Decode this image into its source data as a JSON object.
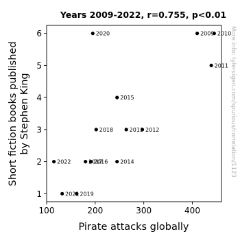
{
  "chart_data": {
    "type": "scatter",
    "title": "Years 2009-2022, r=0.755, p<0.01",
    "xlabel": "Pirate attacks globally",
    "ylabel_lines": [
      "Short fiction books published",
      "by Stephen King"
    ],
    "xlim": [
      100,
      460
    ],
    "ylim": [
      0.75,
      6.25
    ],
    "xticks": [
      100,
      200,
      300,
      400
    ],
    "yticks": [
      1,
      2,
      3,
      4,
      5,
      6
    ],
    "grid": false,
    "watermark": "More info: tylervigen.com/spurious/correlation/1123",
    "points": [
      {
        "x": 410,
        "y": 6,
        "label": "2009"
      },
      {
        "x": 445,
        "y": 6,
        "label": "2010"
      },
      {
        "x": 439,
        "y": 5,
        "label": "2011"
      },
      {
        "x": 297,
        "y": 3,
        "label": "2012"
      },
      {
        "x": 264,
        "y": 3,
        "label": "2013"
      },
      {
        "x": 245,
        "y": 2,
        "label": "2014"
      },
      {
        "x": 245,
        "y": 4,
        "label": "2015"
      },
      {
        "x": 191,
        "y": 2,
        "label": "2016"
      },
      {
        "x": 180,
        "y": 2,
        "label": "2017"
      },
      {
        "x": 202,
        "y": 3,
        "label": "2018"
      },
      {
        "x": 162,
        "y": 1,
        "label": "2019"
      },
      {
        "x": 195,
        "y": 6,
        "label": "2020"
      },
      {
        "x": 132,
        "y": 1,
        "label": "2021"
      },
      {
        "x": 115,
        "y": 2,
        "label": "2022"
      }
    ]
  }
}
